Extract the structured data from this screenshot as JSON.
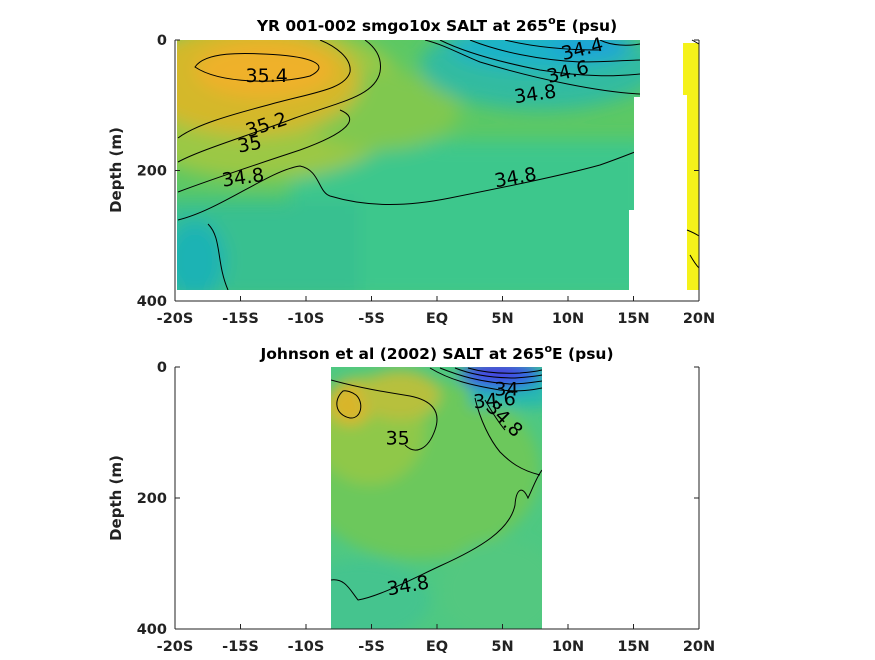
{
  "chart_data": [
    {
      "type": "heatmap",
      "title_main": "YR 001-002 smgo10x SALT at 265",
      "title_sup": "o",
      "title_tail": "E (psu)",
      "ylabel": "Depth (m)",
      "xlim": [
        -20,
        20
      ],
      "ylim": [
        0,
        400
      ],
      "y_reversed": true,
      "x_ticks": [
        {
          "value": -20,
          "label": "-20S"
        },
        {
          "value": -15,
          "label": "-15S"
        },
        {
          "value": -10,
          "label": "-10S"
        },
        {
          "value": -5,
          "label": "-5S"
        },
        {
          "value": 0,
          "label": "EQ"
        },
        {
          "value": 5,
          "label": "5N"
        },
        {
          "value": 10,
          "label": "10N"
        },
        {
          "value": 15,
          "label": "15N"
        },
        {
          "value": 20,
          "label": "20N"
        }
      ],
      "y_ticks": [
        {
          "value": 0,
          "label": "0"
        },
        {
          "value": 200,
          "label": "200"
        },
        {
          "value": 400,
          "label": "400"
        }
      ],
      "contour_labels": [
        {
          "text": "34.4",
          "x": 11.1,
          "y": 15,
          "angle": -14
        },
        {
          "text": "34.6",
          "x": 10.0,
          "y": 50,
          "angle": -14
        },
        {
          "text": "34.8",
          "x": 7.5,
          "y": 84,
          "angle": -8
        },
        {
          "text": "35.4",
          "x": -13.0,
          "y": 56,
          "angle": 0
        },
        {
          "text": "35.2",
          "x": -13.0,
          "y": 131,
          "angle": -18
        },
        {
          "text": "35",
          "x": -14.3,
          "y": 161,
          "angle": -10
        },
        {
          "text": "34.8",
          "x": -14.8,
          "y": 212,
          "angle": -8
        },
        {
          "text": "34.8",
          "x": 6.0,
          "y": 212,
          "angle": -10
        }
      ],
      "contour_levels": [
        34.0,
        34.2,
        34.4,
        34.6,
        34.8,
        35.0,
        35.2,
        35.4
      ],
      "colormap": "parula"
    },
    {
      "type": "heatmap",
      "title_main": "Johnson et al (2002) SALT at 265",
      "title_sup": "o",
      "title_tail": "E (psu)",
      "ylabel": "Depth (m)",
      "xlim": [
        -20,
        20
      ],
      "ylim": [
        0,
        400
      ],
      "y_reversed": true,
      "data_extent_x": [
        -8,
        8
      ],
      "x_ticks": [
        {
          "value": -20,
          "label": "-20S"
        },
        {
          "value": -15,
          "label": "-15S"
        },
        {
          "value": -10,
          "label": "-10S"
        },
        {
          "value": -5,
          "label": "-5S"
        },
        {
          "value": 0,
          "label": "EQ"
        },
        {
          "value": 5,
          "label": "5N"
        },
        {
          "value": 10,
          "label": "10N"
        },
        {
          "value": 15,
          "label": "15N"
        },
        {
          "value": 20,
          "label": "20N"
        }
      ],
      "y_ticks": [
        {
          "value": 0,
          "label": "0"
        },
        {
          "value": 200,
          "label": "200"
        },
        {
          "value": 400,
          "label": "400"
        }
      ],
      "contour_labels": [
        {
          "text": "34",
          "x": 5.3,
          "y": 35,
          "angle": 0
        },
        {
          "text": "34.6",
          "x": 4.4,
          "y": 52,
          "angle": -5
        },
        {
          "text": "34.8",
          "x": 5.1,
          "y": 80,
          "angle": 45
        },
        {
          "text": "35",
          "x": -3.0,
          "y": 110,
          "angle": 0
        },
        {
          "text": "34.8",
          "x": -2.2,
          "y": 335,
          "angle": -10
        }
      ],
      "contour_levels": [
        33.6,
        33.8,
        34.0,
        34.2,
        34.4,
        34.6,
        34.8,
        35.0
      ],
      "colormap": "parula"
    }
  ]
}
